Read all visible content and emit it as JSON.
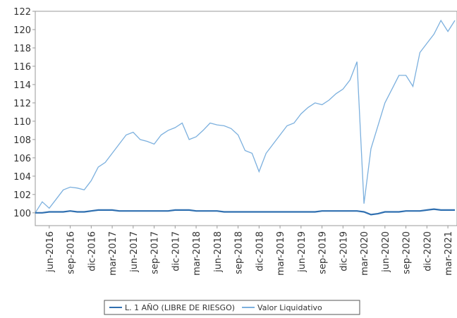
{
  "chart_data": {
    "type": "line",
    "categories": [
      null,
      null,
      "jun-2016",
      null,
      null,
      "sep-2016",
      null,
      null,
      "dic-2016",
      null,
      null,
      "mar-2017",
      null,
      null,
      "jun-2017",
      null,
      null,
      "sep-2017",
      null,
      null,
      "dic-2017",
      null,
      null,
      "mar-2018",
      null,
      null,
      "jun-2018",
      null,
      null,
      "sep-2018",
      null,
      null,
      "dic-2018",
      null,
      null,
      "mar-2019",
      null,
      null,
      "jun-2019",
      null,
      null,
      "sep-2019",
      null,
      null,
      "dic-2019",
      null,
      null,
      "mar-2020",
      null,
      null,
      "jun-2020",
      null,
      null,
      "sep-2020",
      null,
      null,
      "dic-2020",
      null,
      null,
      "mar-2021",
      null
    ],
    "series": [
      {
        "name": "L. 1 AÑO (LIBRE DE RIESGO)",
        "color": "#2f6fb0",
        "values": [
          100,
          100,
          100.1,
          100.1,
          100.1,
          100.2,
          100.1,
          100.1,
          100.2,
          100.3,
          100.3,
          100.3,
          100.2,
          100.2,
          100.2,
          100.2,
          100.2,
          100.2,
          100.2,
          100.2,
          100.3,
          100.3,
          100.3,
          100.2,
          100.2,
          100.2,
          100.2,
          100.1,
          100.1,
          100.1,
          100.1,
          100.1,
          100.1,
          100.1,
          100.1,
          100.1,
          100.1,
          100.1,
          100.1,
          100.1,
          100.1,
          100.2,
          100.2,
          100.2,
          100.2,
          100.2,
          100.2,
          100.1,
          99.8,
          99.9,
          100.1,
          100.1,
          100.1,
          100.2,
          100.2,
          100.2,
          100.3,
          100.4,
          100.3,
          100.3,
          100.3
        ]
      },
      {
        "name": "Valor Liquidativo",
        "color": "#7cb0de",
        "values": [
          100,
          101.2,
          100.5,
          101.5,
          102.5,
          102.8,
          102.7,
          102.5,
          103.5,
          105,
          105.5,
          106.5,
          107.5,
          108.5,
          108.8,
          108,
          107.8,
          107.5,
          108.5,
          109,
          109.3,
          109.8,
          108,
          108.3,
          109,
          109.8,
          109.6,
          109.5,
          109.2,
          108.5,
          106.8,
          106.5,
          104.5,
          106.5,
          107.5,
          108.5,
          109.5,
          109.8,
          110.8,
          111.5,
          112,
          111.8,
          112.3,
          113,
          113.5,
          114.5,
          116.5,
          101,
          107,
          109.5,
          112,
          113.5,
          115,
          115,
          113.8,
          117.5,
          118.5,
          119.5,
          121,
          119.8,
          121
        ]
      }
    ],
    "ylim": [
      98.6,
      122
    ],
    "yticks": [
      100,
      102,
      104,
      106,
      108,
      110,
      112,
      114,
      116,
      118,
      120,
      122
    ]
  }
}
